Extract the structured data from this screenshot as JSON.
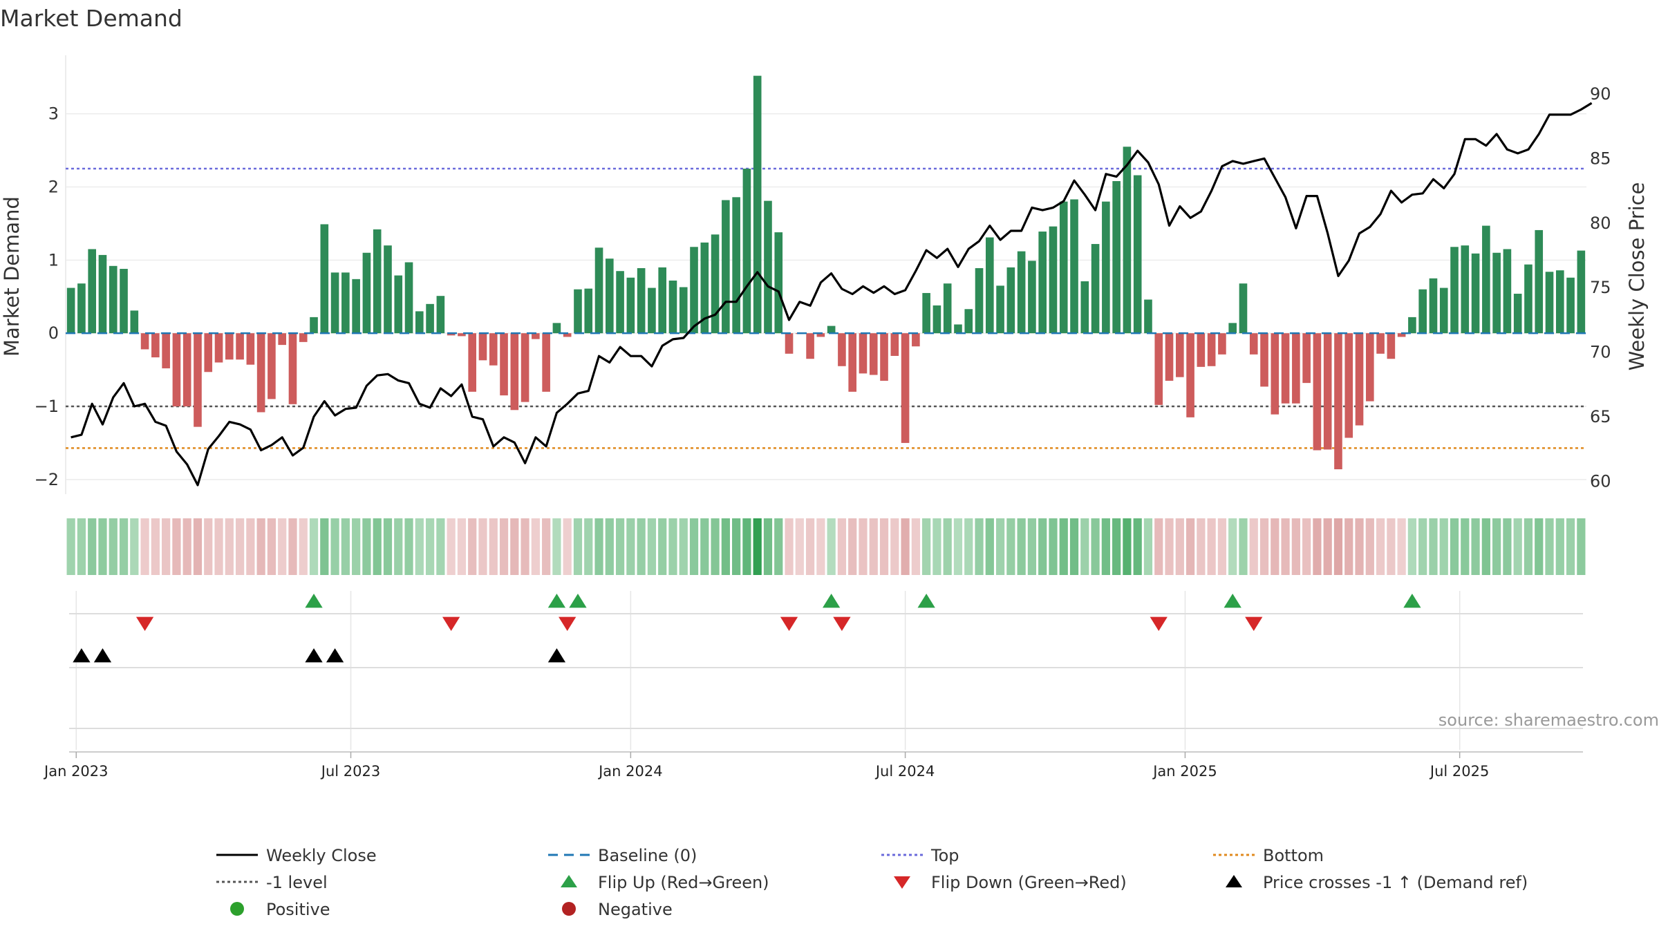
{
  "chart_data": {
    "type": "bar+line",
    "title": "Market Demand",
    "ylabel_left": "Market Demand",
    "ylabel_right": "Weekly Close Price",
    "left_ylim": [
      -2.2,
      3.8
    ],
    "right_ylim": [
      59,
      93
    ],
    "left_ticks": [
      {
        "v": 3,
        "label": "3"
      },
      {
        "v": 2,
        "label": "2"
      },
      {
        "v": 1,
        "label": "1"
      },
      {
        "v": 0,
        "label": "0"
      },
      {
        "v": -1,
        "label": "−1"
      },
      {
        "v": -2,
        "label": "−2"
      }
    ],
    "right_ticks": [
      {
        "v": 90,
        "label": "90"
      },
      {
        "v": 85,
        "label": "85"
      },
      {
        "v": 80,
        "label": "80"
      },
      {
        "v": 75,
        "label": "75"
      },
      {
        "v": 70,
        "label": "70"
      },
      {
        "v": 65,
        "label": "65"
      },
      {
        "v": 60,
        "label": "60"
      }
    ],
    "date_ticks": [
      {
        "week": 1,
        "label": "Jan 2023"
      },
      {
        "week": 27,
        "label": "Jul 2023"
      },
      {
        "week": 53.5,
        "label": "Jan 2024"
      },
      {
        "week": 79.5,
        "label": "Jul 2024"
      },
      {
        "week": 106,
        "label": "Jan 2025"
      },
      {
        "week": 132,
        "label": "Jul 2025"
      }
    ],
    "reference_lines": {
      "baseline": 0,
      "top": 2.25,
      "bottom": -1.57,
      "minus_one": -1
    },
    "demand": [
      0.62,
      0.68,
      1.15,
      1.07,
      0.92,
      0.88,
      0.31,
      -0.22,
      -0.33,
      -0.48,
      -1.0,
      -1.0,
      -1.28,
      -0.53,
      -0.4,
      -0.36,
      -0.36,
      -0.43,
      -1.08,
      -0.9,
      -0.16,
      -0.97,
      -0.12,
      0.22,
      1.49,
      0.83,
      0.83,
      0.74,
      1.1,
      1.42,
      1.2,
      0.79,
      0.97,
      0.3,
      0.4,
      0.51,
      -0.03,
      -0.04,
      -0.8,
      -0.37,
      -0.44,
      -0.85,
      -1.05,
      -0.94,
      -0.08,
      -0.8,
      0.14,
      -0.05,
      0.6,
      0.61,
      1.17,
      1.02,
      0.85,
      0.76,
      0.89,
      0.62,
      0.9,
      0.72,
      0.63,
      1.18,
      1.24,
      1.35,
      1.82,
      1.86,
      2.25,
      3.52,
      1.81,
      1.38,
      -0.28,
      -0.01,
      -0.35,
      -0.05,
      0.1,
      -0.45,
      -0.8,
      -0.55,
      -0.57,
      -0.65,
      -0.31,
      -1.5,
      -0.18,
      0.55,
      0.38,
      0.68,
      0.12,
      0.33,
      0.89,
      1.31,
      0.65,
      0.9,
      1.12,
      0.99,
      1.39,
      1.46,
      1.8,
      1.83,
      0.71,
      1.22,
      1.8,
      2.08,
      2.55,
      2.16,
      0.46,
      -0.98,
      -0.65,
      -0.6,
      -1.15,
      -0.46,
      -0.45,
      -0.29,
      0.14,
      0.68,
      -0.29,
      -0.73,
      -1.11,
      -0.96,
      -0.96,
      -0.68,
      -1.6,
      -1.59,
      -1.86,
      -1.43,
      -1.26,
      -0.93,
      -0.28,
      -0.35,
      -0.05,
      0.22,
      0.6,
      0.75,
      0.62,
      1.18,
      1.2,
      1.09,
      1.47,
      1.1,
      1.15,
      0.54,
      0.94,
      1.41,
      0.84,
      0.86,
      0.76,
      1.13
    ],
    "weekly_close": [
      63.4,
      63.6,
      66.0,
      64.4,
      66.5,
      67.6,
      65.8,
      66.0,
      64.6,
      64.3,
      62.3,
      61.3,
      59.7,
      62.5,
      63.5,
      64.6,
      64.4,
      64.0,
      62.4,
      62.8,
      63.4,
      62.0,
      62.6,
      65.0,
      66.2,
      65.1,
      65.6,
      65.7,
      67.4,
      68.2,
      68.3,
      67.8,
      67.6,
      66.0,
      65.7,
      67.2,
      66.6,
      67.5,
      65.0,
      64.8,
      62.7,
      63.4,
      63.0,
      61.4,
      63.4,
      62.7,
      65.3,
      66.0,
      66.8,
      67.0,
      69.7,
      69.2,
      70.4,
      69.7,
      69.7,
      68.9,
      70.5,
      71.0,
      71.1,
      72.0,
      72.6,
      72.9,
      73.9,
      73.9,
      75.1,
      76.2,
      75.1,
      74.7,
      72.5,
      73.9,
      73.6,
      75.4,
      76.1,
      74.9,
      74.5,
      75.1,
      74.6,
      75.1,
      74.5,
      74.8,
      76.3,
      77.9,
      77.3,
      78.0,
      76.6,
      78.0,
      78.6,
      79.8,
      78.7,
      79.4,
      79.4,
      81.2,
      81.0,
      81.2,
      81.7,
      83.3,
      82.2,
      81.0,
      83.8,
      83.6,
      84.5,
      85.6,
      84.7,
      83.0,
      79.8,
      81.3,
      80.4,
      80.9,
      82.5,
      84.4,
      84.8,
      84.6,
      84.8,
      85.0,
      83.5,
      82.0,
      79.6,
      82.1,
      82.1,
      79.2,
      75.9,
      77.1,
      79.2,
      79.7,
      80.7,
      82.5,
      81.6,
      82.2,
      82.3,
      83.4,
      82.7,
      83.8,
      86.5,
      86.5,
      86.0,
      86.9,
      85.7,
      85.4,
      85.7,
      86.9,
      88.4,
      88.4,
      88.4,
      88.8,
      89.3
    ],
    "flip_up_weeks": [
      23,
      46,
      48,
      72,
      81,
      110,
      127
    ],
    "flip_down_weeks": [
      7,
      36,
      47,
      68,
      73,
      103,
      112
    ],
    "price_cross_weeks": [
      1,
      3,
      23,
      25,
      46
    ],
    "colors": {
      "positive_bar": "#2e8b57",
      "negative_bar": "#cd5c5c",
      "close_line": "#000000",
      "baseline": "#1f77b4",
      "top": "#6a6adb",
      "bottom": "#e08a1e",
      "minus_one": "#555555",
      "flip_up": "#2ca048",
      "flip_down": "#d62728",
      "cross": "#000000",
      "positive_dot": "#2ca02c",
      "negative_dot": "#b22222"
    },
    "source": "source: sharemaestro.com",
    "legend": [
      {
        "label": "Weekly Close",
        "kind": "line",
        "color": "#000000",
        "dash": ""
      },
      {
        "label": "Baseline (0)",
        "kind": "line",
        "color": "#1f77b4",
        "dash": "14 9"
      },
      {
        "label": "Top",
        "kind": "line",
        "color": "#6a6adb",
        "dash": "4 4"
      },
      {
        "label": "Bottom",
        "kind": "line",
        "color": "#e08a1e",
        "dash": "4 4"
      },
      {
        "label": "-1 level",
        "kind": "line",
        "color": "#555555",
        "dash": "4 4"
      },
      {
        "label": "Flip Up (Red→Green)",
        "kind": "tri-up",
        "color": "#2ca048"
      },
      {
        "label": "Flip Down (Green→Red)",
        "kind": "tri-down",
        "color": "#d62728"
      },
      {
        "label": "Price crosses -1 ↑ (Demand ref)",
        "kind": "tri-up",
        "color": "#000000"
      },
      {
        "label": "Positive",
        "kind": "dot",
        "color": "#2ca02c"
      },
      {
        "label": "Negative",
        "kind": "dot",
        "color": "#b22222"
      }
    ]
  }
}
